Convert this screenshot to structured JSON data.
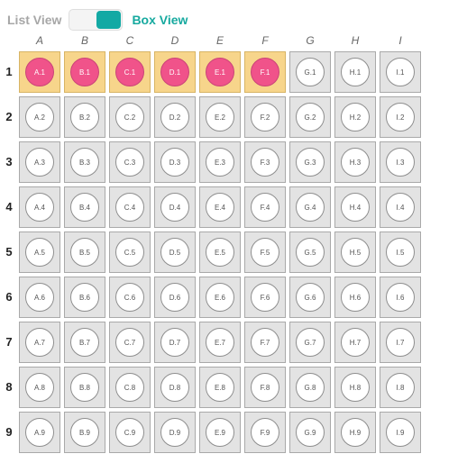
{
  "toolbar": {
    "list_view_label": "List View",
    "box_view_label": "Box View",
    "active_view": "box"
  },
  "grid": {
    "columns": [
      "A",
      "B",
      "C",
      "D",
      "E",
      "F",
      "G",
      "H",
      "I"
    ],
    "rows": [
      "1",
      "2",
      "3",
      "4",
      "5",
      "6",
      "7",
      "8",
      "9"
    ],
    "selected_wells": [
      "A.1",
      "B.1",
      "C.1",
      "D.1",
      "E.1",
      "F.1"
    ]
  },
  "colors": {
    "accent_teal": "#13a9a4",
    "selected_cell_bg": "#f7d58b",
    "selected_well": "#f0538a",
    "cell_bg": "#e3e3e3",
    "well_bg": "#ffffff"
  }
}
